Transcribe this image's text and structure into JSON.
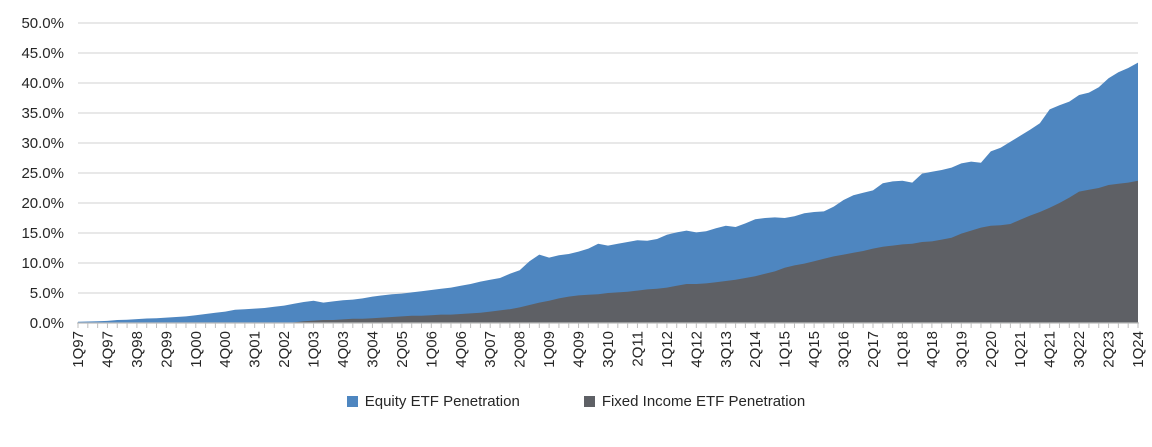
{
  "legend": {
    "equity_label": "Equity ETF Penetration",
    "fixed_income_label": "Fixed Income ETF Penetration"
  },
  "chart_data": {
    "type": "area",
    "overlap": true,
    "title": "",
    "xlabel": "",
    "ylabel": "",
    "ylim": [
      0,
      50
    ],
    "ytick_step": 5,
    "ytick_labels": [
      "0.0%",
      "5.0%",
      "10.0%",
      "15.0%",
      "20.0%",
      "25.0%",
      "30.0%",
      "35.0%",
      "40.0%",
      "45.0%",
      "50.0%"
    ],
    "xtick_label_interval": 3,
    "grid": true,
    "legend_position": "bottom",
    "colors": {
      "equity": "#4E86C0",
      "fixed_income": "#5E6065",
      "gridline": "#D9D9D9",
      "axis": "#BFBFBF",
      "text": "#262626"
    },
    "categories": [
      "1Q97",
      "2Q97",
      "3Q97",
      "4Q97",
      "1Q98",
      "2Q98",
      "3Q98",
      "4Q98",
      "1Q99",
      "2Q99",
      "3Q99",
      "4Q99",
      "1Q00",
      "2Q00",
      "3Q00",
      "4Q00",
      "1Q01",
      "2Q01",
      "3Q01",
      "4Q01",
      "1Q02",
      "2Q02",
      "3Q02",
      "4Q02",
      "1Q03",
      "2Q03",
      "3Q03",
      "4Q03",
      "1Q04",
      "2Q04",
      "3Q04",
      "4Q04",
      "1Q05",
      "2Q05",
      "3Q05",
      "4Q05",
      "1Q06",
      "2Q06",
      "3Q06",
      "4Q06",
      "1Q07",
      "2Q07",
      "3Q07",
      "4Q07",
      "1Q08",
      "2Q08",
      "3Q08",
      "4Q08",
      "1Q09",
      "2Q09",
      "3Q09",
      "4Q09",
      "1Q10",
      "2Q10",
      "3Q10",
      "4Q10",
      "1Q11",
      "2Q11",
      "3Q11",
      "4Q11",
      "1Q12",
      "2Q12",
      "3Q12",
      "4Q12",
      "1Q13",
      "2Q13",
      "3Q13",
      "4Q13",
      "1Q14",
      "2Q14",
      "3Q14",
      "4Q14",
      "1Q15",
      "2Q15",
      "3Q15",
      "4Q15",
      "1Q16",
      "2Q16",
      "3Q16",
      "4Q16",
      "1Q17",
      "2Q17",
      "3Q17",
      "4Q17",
      "1Q18",
      "2Q18",
      "3Q18",
      "4Q18",
      "1Q19",
      "2Q19",
      "3Q19",
      "4Q19",
      "1Q20",
      "2Q20",
      "3Q20",
      "4Q20",
      "1Q21",
      "2Q21",
      "3Q21",
      "4Q21",
      "1Q22",
      "2Q22",
      "3Q22",
      "4Q22",
      "1Q23",
      "2Q23",
      "3Q23",
      "4Q23",
      "1Q24"
    ],
    "series": [
      {
        "name": "Equity ETF Penetration",
        "values": [
          0.2,
          0.25,
          0.3,
          0.35,
          0.5,
          0.55,
          0.65,
          0.75,
          0.8,
          0.9,
          1.0,
          1.1,
          1.3,
          1.5,
          1.7,
          1.9,
          2.2,
          2.3,
          2.4,
          2.5,
          2.7,
          2.9,
          3.2,
          3.5,
          3.7,
          3.4,
          3.6,
          3.8,
          3.9,
          4.1,
          4.4,
          4.6,
          4.8,
          4.9,
          5.1,
          5.3,
          5.5,
          5.7,
          5.9,
          6.2,
          6.5,
          6.9,
          7.2,
          7.5,
          8.2,
          8.8,
          10.3,
          11.4,
          10.9,
          11.3,
          11.5,
          11.9,
          12.4,
          13.2,
          12.9,
          13.2,
          13.5,
          13.8,
          13.7,
          14.0,
          14.7,
          15.1,
          15.4,
          15.1,
          15.3,
          15.8,
          16.2,
          16.0,
          16.6,
          17.3,
          17.5,
          17.6,
          17.5,
          17.8,
          18.3,
          18.5,
          18.6,
          19.4,
          20.5,
          21.3,
          21.7,
          22.1,
          23.3,
          23.6,
          23.7,
          23.4,
          24.9,
          25.2,
          25.5,
          25.9,
          26.6,
          26.9,
          26.7,
          28.6,
          29.2,
          30.2,
          31.2,
          32.2,
          33.3,
          35.6,
          36.3,
          36.9,
          38.0,
          38.4,
          39.3,
          40.8,
          41.8,
          42.5,
          43.4
        ]
      },
      {
        "name": "Fixed Income ETF Penetration",
        "values": [
          0,
          0,
          0,
          0,
          0,
          0,
          0,
          0,
          0,
          0,
          0,
          0,
          0,
          0,
          0,
          0,
          0,
          0,
          0,
          0,
          0,
          0,
          0.1,
          0.3,
          0.4,
          0.5,
          0.5,
          0.6,
          0.7,
          0.7,
          0.8,
          0.9,
          1.0,
          1.1,
          1.2,
          1.2,
          1.3,
          1.4,
          1.4,
          1.5,
          1.6,
          1.7,
          1.9,
          2.1,
          2.3,
          2.6,
          3.0,
          3.4,
          3.7,
          4.1,
          4.4,
          4.6,
          4.7,
          4.8,
          5.0,
          5.1,
          5.2,
          5.4,
          5.6,
          5.7,
          5.9,
          6.2,
          6.5,
          6.5,
          6.6,
          6.8,
          7.0,
          7.2,
          7.5,
          7.8,
          8.2,
          8.6,
          9.2,
          9.6,
          9.9,
          10.3,
          10.7,
          11.1,
          11.4,
          11.7,
          12.0,
          12.4,
          12.7,
          12.9,
          13.1,
          13.2,
          13.5,
          13.6,
          13.9,
          14.2,
          14.9,
          15.4,
          15.9,
          16.2,
          16.3,
          16.5,
          17.2,
          17.9,
          18.5,
          19.2,
          20.0,
          20.9,
          21.9,
          22.2,
          22.5,
          23.0,
          23.2,
          23.4,
          23.7
        ]
      }
    ]
  }
}
